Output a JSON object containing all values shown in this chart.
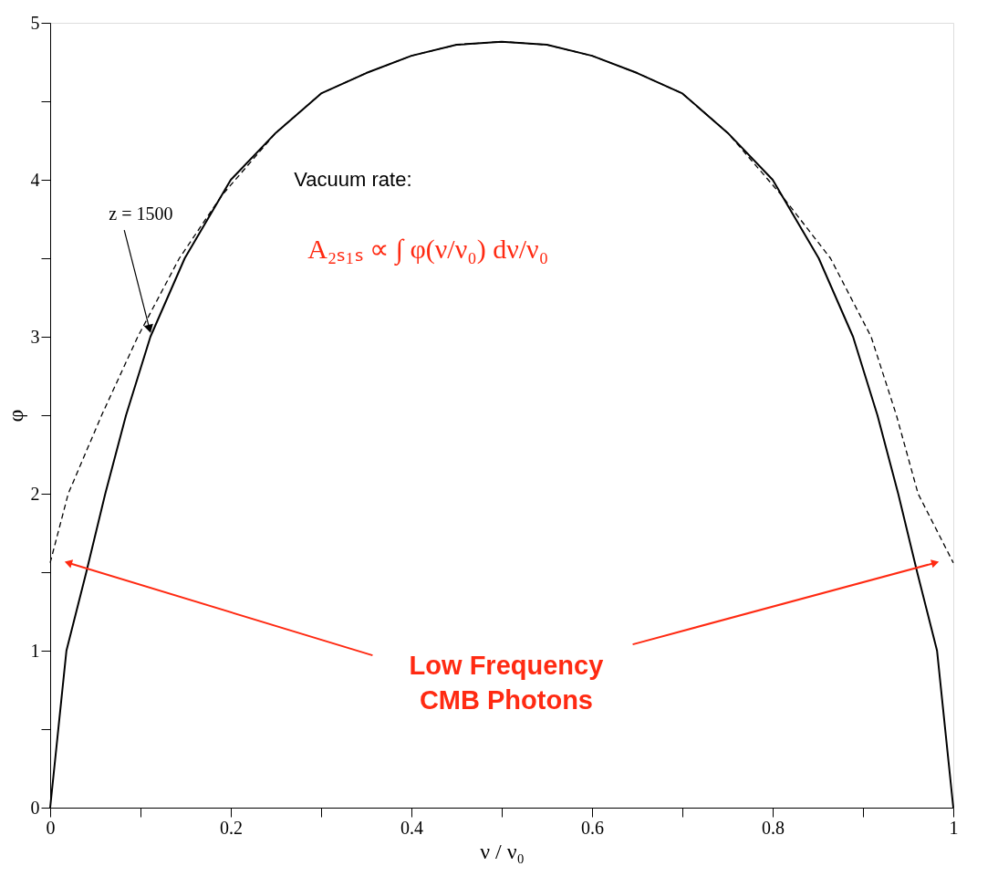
{
  "chart_data": {
    "type": "line",
    "xlabel": "ν / ν₀",
    "ylabel": "φ",
    "xlim": [
      0,
      1
    ],
    "ylim": [
      0,
      5
    ],
    "xticks": [
      0,
      {
        "value": 0.1,
        "label": null
      },
      0.2,
      {
        "value": 0.3,
        "label": null
      },
      0.4,
      {
        "value": 0.5,
        "label": null
      },
      0.6,
      {
        "value": 0.7,
        "label": null
      },
      0.8,
      {
        "value": 0.9,
        "label": null
      },
      1
    ],
    "yticks": [
      0,
      {
        "value": 0.5,
        "label": null
      },
      1,
      {
        "value": 1.5,
        "label": null
      },
      2,
      {
        "value": 2.5,
        "label": null
      },
      3,
      {
        "value": 3.5,
        "label": null
      },
      4,
      {
        "value": 4.5,
        "label": null
      },
      5
    ],
    "grid": false,
    "series": [
      {
        "color": "#000000",
        "line_style": "solid",
        "x": [
          0,
          0.018,
          0.04,
          0.061,
          0.084,
          0.111,
          0.149,
          0.2,
          0.25,
          0.3,
          0.35,
          0.4,
          0.45,
          0.5,
          0.55,
          0.6,
          0.65,
          0.7,
          0.75,
          0.8,
          0.851,
          0.889,
          0.916,
          0.939,
          0.96,
          0.982,
          1
        ],
        "values": [
          0,
          1,
          1.5,
          2,
          2.5,
          3,
          3.5,
          4.0,
          4.3,
          4.55,
          4.68,
          4.79,
          4.86,
          4.88,
          4.86,
          4.79,
          4.68,
          4.55,
          4.3,
          4.0,
          3.5,
          3,
          2.5,
          2,
          1.5,
          1,
          0
        ]
      },
      {
        "color": "#000000",
        "line_style": "dashed",
        "x": [
          0,
          0.02,
          0.057,
          0.097,
          0.143,
          0.19,
          0.25,
          0.3,
          0.35,
          0.4,
          0.45,
          0.5,
          0.55,
          0.6,
          0.65,
          0.7,
          0.75,
          0.81,
          0.864,
          0.909,
          0.937,
          0.961,
          1
        ],
        "values": [
          1.56,
          2,
          2.5,
          3,
          3.5,
          3.9,
          4.3,
          4.55,
          4.68,
          4.79,
          4.86,
          4.88,
          4.86,
          4.79,
          4.68,
          4.55,
          4.3,
          3.9,
          3.5,
          3,
          2.5,
          2,
          1.56
        ]
      }
    ],
    "annotations": [
      {
        "text": "z = 1500",
        "x": 0.11,
        "y": 3.05
      },
      "Vacuum rate:",
      "A₂ₛ₁ₛ ∝ ∫ φ(ν/ν₀) dν/ν₀",
      "Low Frequency\nCMB Photons"
    ]
  }
}
